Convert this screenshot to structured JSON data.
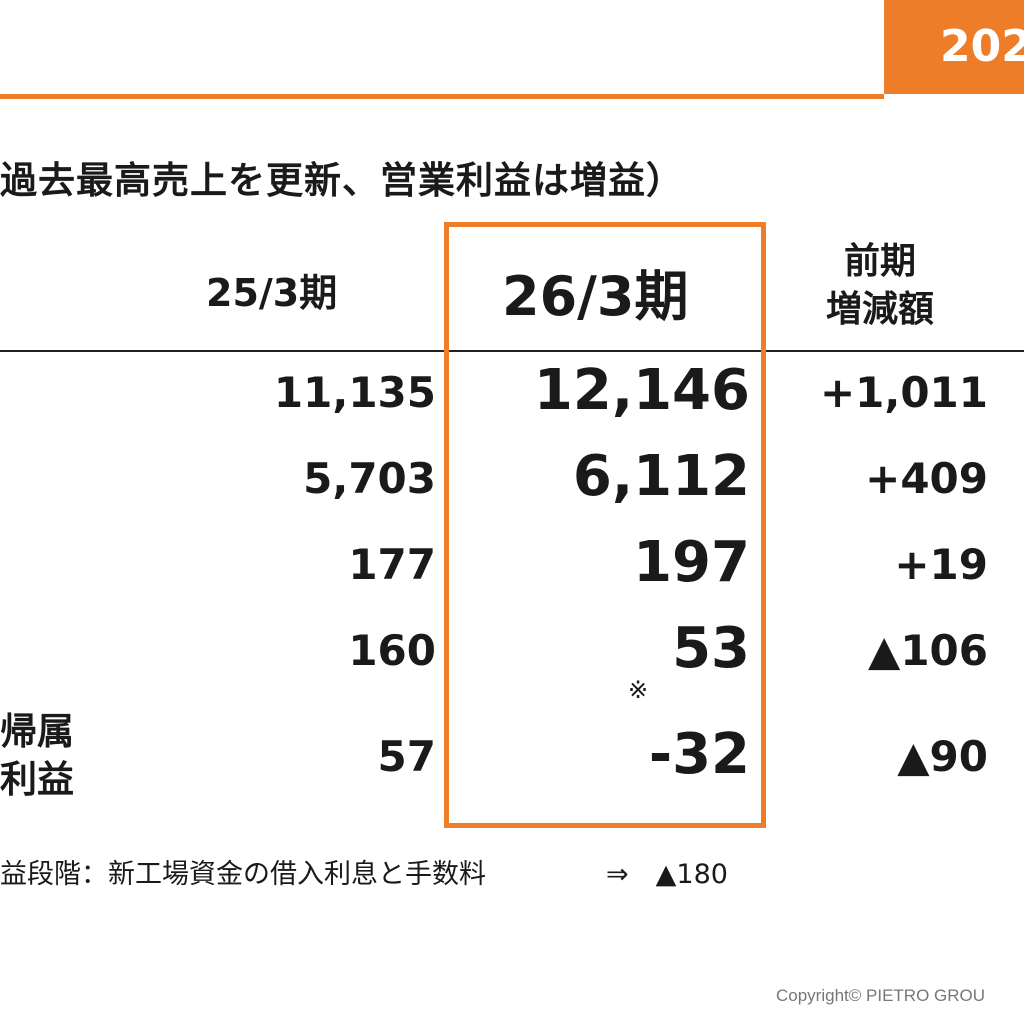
{
  "header": {
    "year_fragment": "202"
  },
  "headline": "過去最高売上を更新、営業利益は増益）",
  "table": {
    "columns": {
      "prev": "25/3期",
      "curr": "26/3期",
      "diff": "前期\n増減額"
    },
    "rows": [
      {
        "prev": "11,135",
        "curr": "12,146",
        "diff": "+1,011"
      },
      {
        "prev": "5,703",
        "curr": "6,112",
        "diff": "+409"
      },
      {
        "prev": "177",
        "curr": "197",
        "diff": "+19"
      },
      {
        "prev": "160",
        "curr": "53",
        "diff": "▲106"
      },
      {
        "label": "帰属\n利益",
        "prev": "57",
        "curr": "-32",
        "diff": "▲90"
      }
    ],
    "note_mark": "※"
  },
  "footnote": {
    "text": "益段階：新工場資金の借入利息と手数料",
    "value": "⇒　▲180"
  },
  "copyright": "Copyright© PIETRO GROU",
  "colors": {
    "accent": "#ee7d2a"
  }
}
